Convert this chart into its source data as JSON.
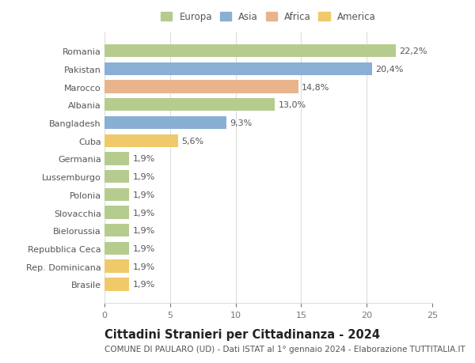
{
  "categories": [
    "Brasile",
    "Rep. Dominicana",
    "Repubblica Ceca",
    "Bielorussia",
    "Slovacchia",
    "Polonia",
    "Lussemburgo",
    "Germania",
    "Cuba",
    "Bangladesh",
    "Albania",
    "Marocco",
    "Pakistan",
    "Romania"
  ],
  "values": [
    1.9,
    1.9,
    1.9,
    1.9,
    1.9,
    1.9,
    1.9,
    1.9,
    5.6,
    9.3,
    13.0,
    14.8,
    20.4,
    22.2
  ],
  "colors": [
    "#f0c96a",
    "#f0c96a",
    "#b5cc8e",
    "#b5cc8e",
    "#b5cc8e",
    "#b5cc8e",
    "#b5cc8e",
    "#b5cc8e",
    "#f0c96a",
    "#8aafd4",
    "#b5cc8e",
    "#e8b48c",
    "#8aafd4",
    "#b5cc8e"
  ],
  "labels": [
    "1,9%",
    "1,9%",
    "1,9%",
    "1,9%",
    "1,9%",
    "1,9%",
    "1,9%",
    "1,9%",
    "5,6%",
    "9,3%",
    "13,0%",
    "14,8%",
    "20,4%",
    "22,2%"
  ],
  "legend_labels": [
    "Europa",
    "Asia",
    "Africa",
    "America"
  ],
  "legend_colors": [
    "#b5cc8e",
    "#8aafd4",
    "#e8b48c",
    "#f0c96a"
  ],
  "title": "Cittadini Stranieri per Cittadinanza - 2024",
  "subtitle": "COMUNE DI PAULARO (UD) - Dati ISTAT al 1° gennaio 2024 - Elaborazione TUTTITALIA.IT",
  "xlim": [
    0,
    25
  ],
  "xticks": [
    0,
    5,
    10,
    15,
    20,
    25
  ],
  "bg_color": "#ffffff",
  "grid_color": "#dddddd",
  "bar_height": 0.72,
  "label_fontsize": 8.0,
  "tick_fontsize": 8.0,
  "title_fontsize": 10.5,
  "subtitle_fontsize": 7.5
}
